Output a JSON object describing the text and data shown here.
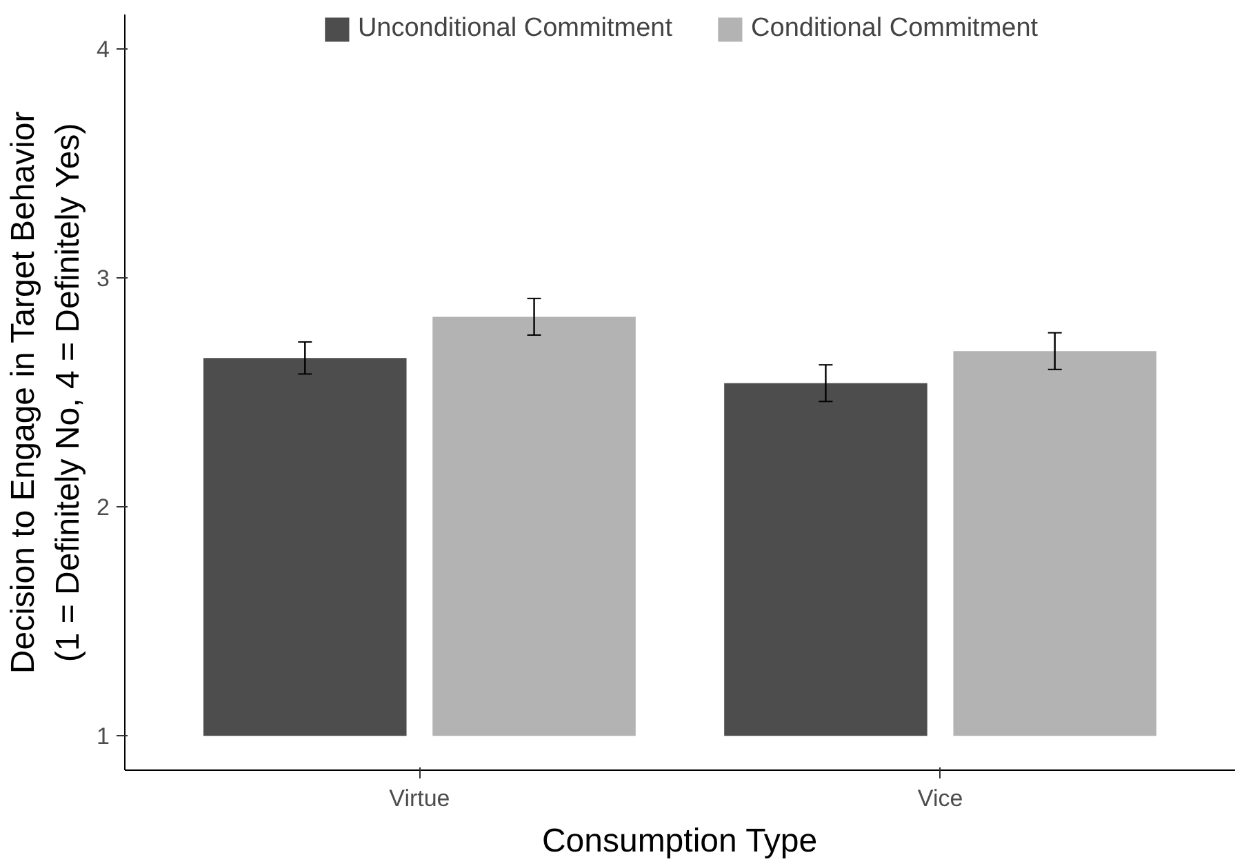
{
  "chart_data": {
    "type": "bar",
    "xlabel": "Consumption Type",
    "ylabel": "Decision to Engage in Target Behavior\n(1 = Definitely No, 4 = Definitely Yes)",
    "categories": [
      "Virtue",
      "Vice"
    ],
    "series": [
      {
        "name": "Unconditional Commitment",
        "color": "#4d4d4d",
        "values": [
          1.65,
          1.54
        ],
        "base": [
          1,
          1
        ],
        "errors": [
          0.07,
          0.08
        ]
      },
      {
        "name": "Conditional Commitment",
        "color": "#b3b3b3",
        "values": [
          1.83,
          1.68
        ],
        "base": [
          1,
          1
        ],
        "errors": [
          0.08,
          0.08
        ]
      }
    ],
    "ylim": [
      0.85,
      4.15
    ],
    "yticks": [
      1,
      2,
      3,
      4
    ],
    "grid": false,
    "legend": "top"
  }
}
